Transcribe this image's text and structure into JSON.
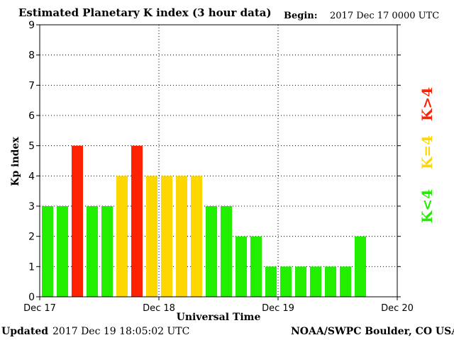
{
  "header": {
    "title": "Estimated Planetary K index (3 hour data)",
    "begin_label": "Begin:",
    "begin_value": "2017 Dec 17 0000 UTC"
  },
  "footer": {
    "updated_label": "Updated",
    "updated_value": "2017 Dec 19 18:05:02 UTC",
    "source": "NOAA/SWPC Boulder, CO USA"
  },
  "legend": {
    "high": "K>4",
    "equal": "K=4",
    "low": "K<4",
    "colors": {
      "high": "#ff2200",
      "equal": "#ffd700",
      "low": "#22ee00"
    }
  },
  "chart_data": {
    "type": "bar",
    "title": "Estimated Planetary K index (3 hour data)",
    "xlabel": "Universal Time",
    "ylabel": "Kp index",
    "ylim": [
      0,
      9
    ],
    "yticks": [
      "0",
      "1",
      "2",
      "3",
      "4",
      "5",
      "6",
      "7",
      "8",
      "9"
    ],
    "xticks": [
      "Dec 17",
      "Dec 18",
      "Dec 19",
      "Dec 20"
    ],
    "grid": true,
    "x_interval": "3 hour",
    "values": [
      3,
      3,
      5,
      3,
      3,
      4,
      5,
      4,
      4,
      4,
      4,
      3,
      3,
      2,
      2,
      1,
      1,
      1,
      1,
      1,
      1,
      2
    ]
  }
}
